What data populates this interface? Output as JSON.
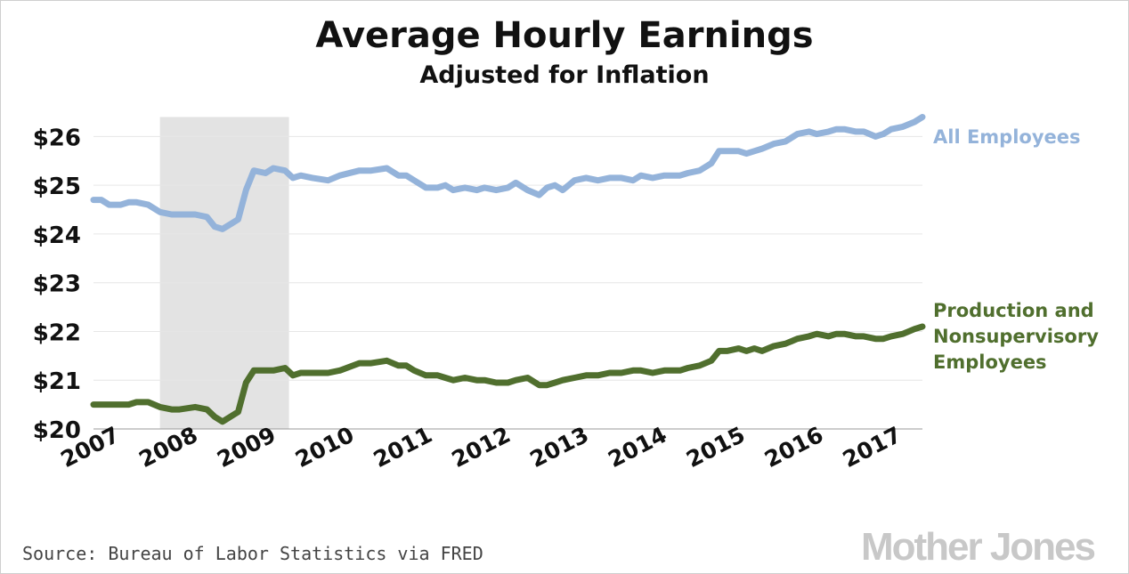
{
  "chart_data": {
    "type": "line",
    "title": "Average Hourly Earnings",
    "subtitle": "Adjusted for Inflation",
    "source": "Source: Bureau of Labor Statistics via FRED",
    "logo": "Mother Jones",
    "xlabel": "",
    "ylabel": "",
    "xlim": [
      2007.0,
      2017.6
    ],
    "ylim": [
      20,
      26.5
    ],
    "x_ticks": [
      {
        "value": 2007,
        "label": "2007"
      },
      {
        "value": 2008,
        "label": "2008"
      },
      {
        "value": 2009,
        "label": "2009"
      },
      {
        "value": 2010,
        "label": "2010"
      },
      {
        "value": 2011,
        "label": "2011"
      },
      {
        "value": 2012,
        "label": "2012"
      },
      {
        "value": 2013,
        "label": "2013"
      },
      {
        "value": 2014,
        "label": "2014"
      },
      {
        "value": 2015,
        "label": "2015"
      },
      {
        "value": 2016,
        "label": "2016"
      },
      {
        "value": 2017,
        "label": "2017"
      }
    ],
    "y_ticks": [
      {
        "value": 20,
        "label": "$20"
      },
      {
        "value": 21,
        "label": "$21"
      },
      {
        "value": 22,
        "label": "$22"
      },
      {
        "value": 23,
        "label": "$23"
      },
      {
        "value": 24,
        "label": "$24"
      },
      {
        "value": 25,
        "label": "$25"
      },
      {
        "value": 26,
        "label": "$26"
      }
    ],
    "grid": true,
    "recession_shading": {
      "start": 2007.85,
      "end": 2009.5,
      "color": "#e3e3e3"
    },
    "series": [
      {
        "name": "All Employees",
        "label_lines": [
          "All Employees"
        ],
        "color": "#94b3da",
        "x": [
          2007.0,
          2007.1,
          2007.2,
          2007.35,
          2007.45,
          2007.55,
          2007.7,
          2007.85,
          2008.0,
          2008.1,
          2008.3,
          2008.45,
          2008.55,
          2008.65,
          2008.75,
          2008.85,
          2008.95,
          2009.05,
          2009.2,
          2009.3,
          2009.45,
          2009.55,
          2009.65,
          2009.8,
          2010.0,
          2010.15,
          2010.4,
          2010.55,
          2010.75,
          2010.9,
          2011.0,
          2011.1,
          2011.25,
          2011.4,
          2011.5,
          2011.6,
          2011.75,
          2011.9,
          2012.0,
          2012.15,
          2012.3,
          2012.4,
          2012.55,
          2012.7,
          2012.8,
          2012.9,
          2013.0,
          2013.15,
          2013.3,
          2013.45,
          2013.6,
          2013.75,
          2013.9,
          2014.0,
          2014.15,
          2014.3,
          2014.5,
          2014.6,
          2014.75,
          2014.9,
          2015.0,
          2015.1,
          2015.25,
          2015.35,
          2015.45,
          2015.55,
          2015.7,
          2015.85,
          2016.0,
          2016.15,
          2016.25,
          2016.4,
          2016.5,
          2016.6,
          2016.75,
          2016.85,
          2017.0,
          2017.1,
          2017.2,
          2017.35,
          2017.5,
          2017.6
        ],
        "values": [
          24.7,
          24.7,
          24.6,
          24.6,
          24.65,
          24.65,
          24.6,
          24.45,
          24.4,
          24.4,
          24.4,
          24.35,
          24.15,
          24.1,
          24.2,
          24.3,
          24.9,
          25.3,
          25.25,
          25.35,
          25.3,
          25.15,
          25.2,
          25.15,
          25.1,
          25.2,
          25.3,
          25.3,
          25.35,
          25.2,
          25.2,
          25.1,
          24.95,
          24.95,
          25.0,
          24.9,
          24.95,
          24.9,
          24.95,
          24.9,
          24.95,
          25.05,
          24.9,
          24.8,
          24.95,
          25.0,
          24.9,
          25.1,
          25.15,
          25.1,
          25.15,
          25.15,
          25.1,
          25.2,
          25.15,
          25.2,
          25.2,
          25.25,
          25.3,
          25.45,
          25.7,
          25.7,
          25.7,
          25.65,
          25.7,
          25.75,
          25.85,
          25.9,
          26.05,
          26.1,
          26.05,
          26.1,
          26.15,
          26.15,
          26.1,
          26.1,
          26.0,
          26.05,
          26.15,
          26.2,
          26.3,
          26.4
        ]
      },
      {
        "name": "Production and Nonsupervisory Employees",
        "label_lines": [
          "Production and",
          "Nonsupervisory",
          "Employees"
        ],
        "color": "#506f2e",
        "x": [
          2007.0,
          2007.1,
          2007.2,
          2007.35,
          2007.45,
          2007.55,
          2007.7,
          2007.85,
          2008.0,
          2008.1,
          2008.3,
          2008.45,
          2008.55,
          2008.65,
          2008.75,
          2008.85,
          2008.95,
          2009.05,
          2009.2,
          2009.3,
          2009.45,
          2009.55,
          2009.65,
          2009.8,
          2010.0,
          2010.15,
          2010.4,
          2010.55,
          2010.75,
          2010.9,
          2011.0,
          2011.1,
          2011.25,
          2011.4,
          2011.5,
          2011.6,
          2011.75,
          2011.9,
          2012.0,
          2012.15,
          2012.3,
          2012.4,
          2012.55,
          2012.7,
          2012.8,
          2012.9,
          2013.0,
          2013.15,
          2013.3,
          2013.45,
          2013.6,
          2013.75,
          2013.9,
          2014.0,
          2014.15,
          2014.3,
          2014.5,
          2014.6,
          2014.75,
          2014.9,
          2015.0,
          2015.1,
          2015.25,
          2015.35,
          2015.45,
          2015.55,
          2015.7,
          2015.85,
          2016.0,
          2016.15,
          2016.25,
          2016.4,
          2016.5,
          2016.6,
          2016.75,
          2016.85,
          2017.0,
          2017.1,
          2017.2,
          2017.35,
          2017.5,
          2017.6
        ],
        "values": [
          20.5,
          20.5,
          20.5,
          20.5,
          20.5,
          20.55,
          20.55,
          20.45,
          20.4,
          20.4,
          20.45,
          20.4,
          20.25,
          20.15,
          20.25,
          20.35,
          20.95,
          21.2,
          21.2,
          21.2,
          21.25,
          21.1,
          21.15,
          21.15,
          21.15,
          21.2,
          21.35,
          21.35,
          21.4,
          21.3,
          21.3,
          21.2,
          21.1,
          21.1,
          21.05,
          21.0,
          21.05,
          21.0,
          21.0,
          20.95,
          20.95,
          21.0,
          21.05,
          20.9,
          20.9,
          20.95,
          21.0,
          21.05,
          21.1,
          21.1,
          21.15,
          21.15,
          21.2,
          21.2,
          21.15,
          21.2,
          21.2,
          21.25,
          21.3,
          21.4,
          21.6,
          21.6,
          21.65,
          21.6,
          21.65,
          21.6,
          21.7,
          21.75,
          21.85,
          21.9,
          21.95,
          21.9,
          21.95,
          21.95,
          21.9,
          21.9,
          21.85,
          21.85,
          21.9,
          21.95,
          22.05,
          22.1
        ]
      }
    ]
  }
}
